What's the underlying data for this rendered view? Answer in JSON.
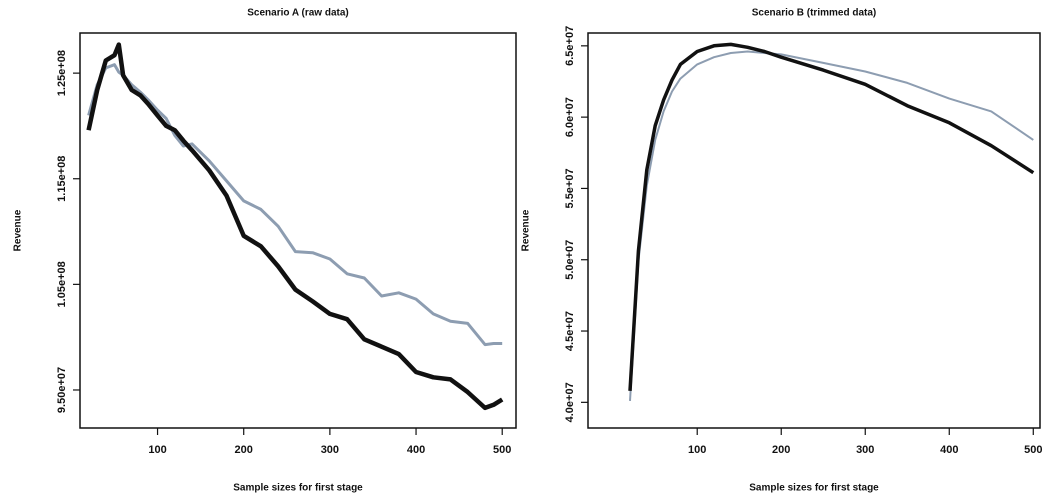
{
  "chart_data": [
    {
      "type": "line",
      "title": "Scenario A (raw data)",
      "x_label": "Sample sizes for first stage",
      "y_label": "Revenue",
      "x": [
        20,
        30,
        40,
        50,
        55,
        60,
        70,
        80,
        90,
        100,
        110,
        120,
        130,
        140,
        160,
        180,
        200,
        220,
        240,
        260,
        280,
        300,
        320,
        340,
        360,
        380,
        400,
        420,
        440,
        460,
        480,
        490,
        500
      ],
      "series": [
        {
          "color": "#8d9db1",
          "values": [
            121000000,
            123900000,
            125500000,
            125800000,
            125100000,
            124800000,
            123900000,
            123200000,
            122400000,
            121500000,
            120700000,
            119100000,
            118100000,
            118300000,
            116700000,
            114800000,
            112900000,
            112100000,
            110500000,
            108100000,
            108000000,
            107400000,
            106000000,
            105600000,
            103900000,
            104200000,
            103600000,
            102200000,
            101500000,
            101300000,
            99300000,
            99400000,
            99400000
          ]
        },
        {
          "color": "#111111",
          "values": [
            119600000,
            123400000,
            126200000,
            126700000,
            127700000,
            124800000,
            123400000,
            122900000,
            122000000,
            121000000,
            120000000,
            119600000,
            118600000,
            117700000,
            115800000,
            113400000,
            109600000,
            108600000,
            106700000,
            104500000,
            103400000,
            102200000,
            101700000,
            99800000,
            99100000,
            98400000,
            96700000,
            96200000,
            96000000,
            94800000,
            93300000,
            93600000,
            94100000
          ]
        }
      ],
      "xlim": [
        10,
        516
      ],
      "xticks": [
        100,
        200,
        300,
        400,
        500
      ],
      "ylim": [
        91400000,
        128800000
      ],
      "yticks": [
        {
          "value": 95000000,
          "label": "9.50e+07"
        },
        {
          "value": 105000000,
          "label": "1.05e+08"
        },
        {
          "value": 115000000,
          "label": "1.15e+08"
        },
        {
          "value": 125000000,
          "label": "1.25e+08"
        }
      ]
    },
    {
      "type": "line",
      "title": "Scenario B (trimmed data)",
      "x_label": "Sample sizes for first stage",
      "y_label": "Revenue",
      "x": [
        20,
        25,
        30,
        40,
        50,
        60,
        70,
        80,
        100,
        120,
        140,
        160,
        180,
        200,
        250,
        300,
        350,
        400,
        450,
        500
      ],
      "series": [
        {
          "color": "#8d9db1",
          "values": [
            40100000,
            45000000,
            49900000,
            55200000,
            58400000,
            60400000,
            61800000,
            62700000,
            63700000,
            64200000,
            64500000,
            64600000,
            64500000,
            64400000,
            63800000,
            63200000,
            62400000,
            61300000,
            60400000,
            58400000
          ]
        },
        {
          "color": "#111111",
          "values": [
            40800000,
            45700000,
            50600000,
            56300000,
            59400000,
            61200000,
            62600000,
            63700000,
            64600000,
            65000000,
            65100000,
            64900000,
            64600000,
            64200000,
            63300000,
            62300000,
            60800000,
            59600000,
            58000000,
            56100000
          ]
        }
      ],
      "xlim": [
        -30,
        508
      ],
      "xticks": [
        100,
        200,
        300,
        400,
        500
      ],
      "ylim": [
        38200000,
        65900000
      ],
      "yticks": [
        {
          "value": 40000000,
          "label": "4.0e+07"
        },
        {
          "value": 45000000,
          "label": "4.5e+07"
        },
        {
          "value": 50000000,
          "label": "5.0e+07"
        },
        {
          "value": 55000000,
          "label": "5.5e+07"
        },
        {
          "value": 60000000,
          "label": "6.0e+07"
        },
        {
          "value": 65000000,
          "label": "6.5e+07"
        }
      ]
    }
  ]
}
